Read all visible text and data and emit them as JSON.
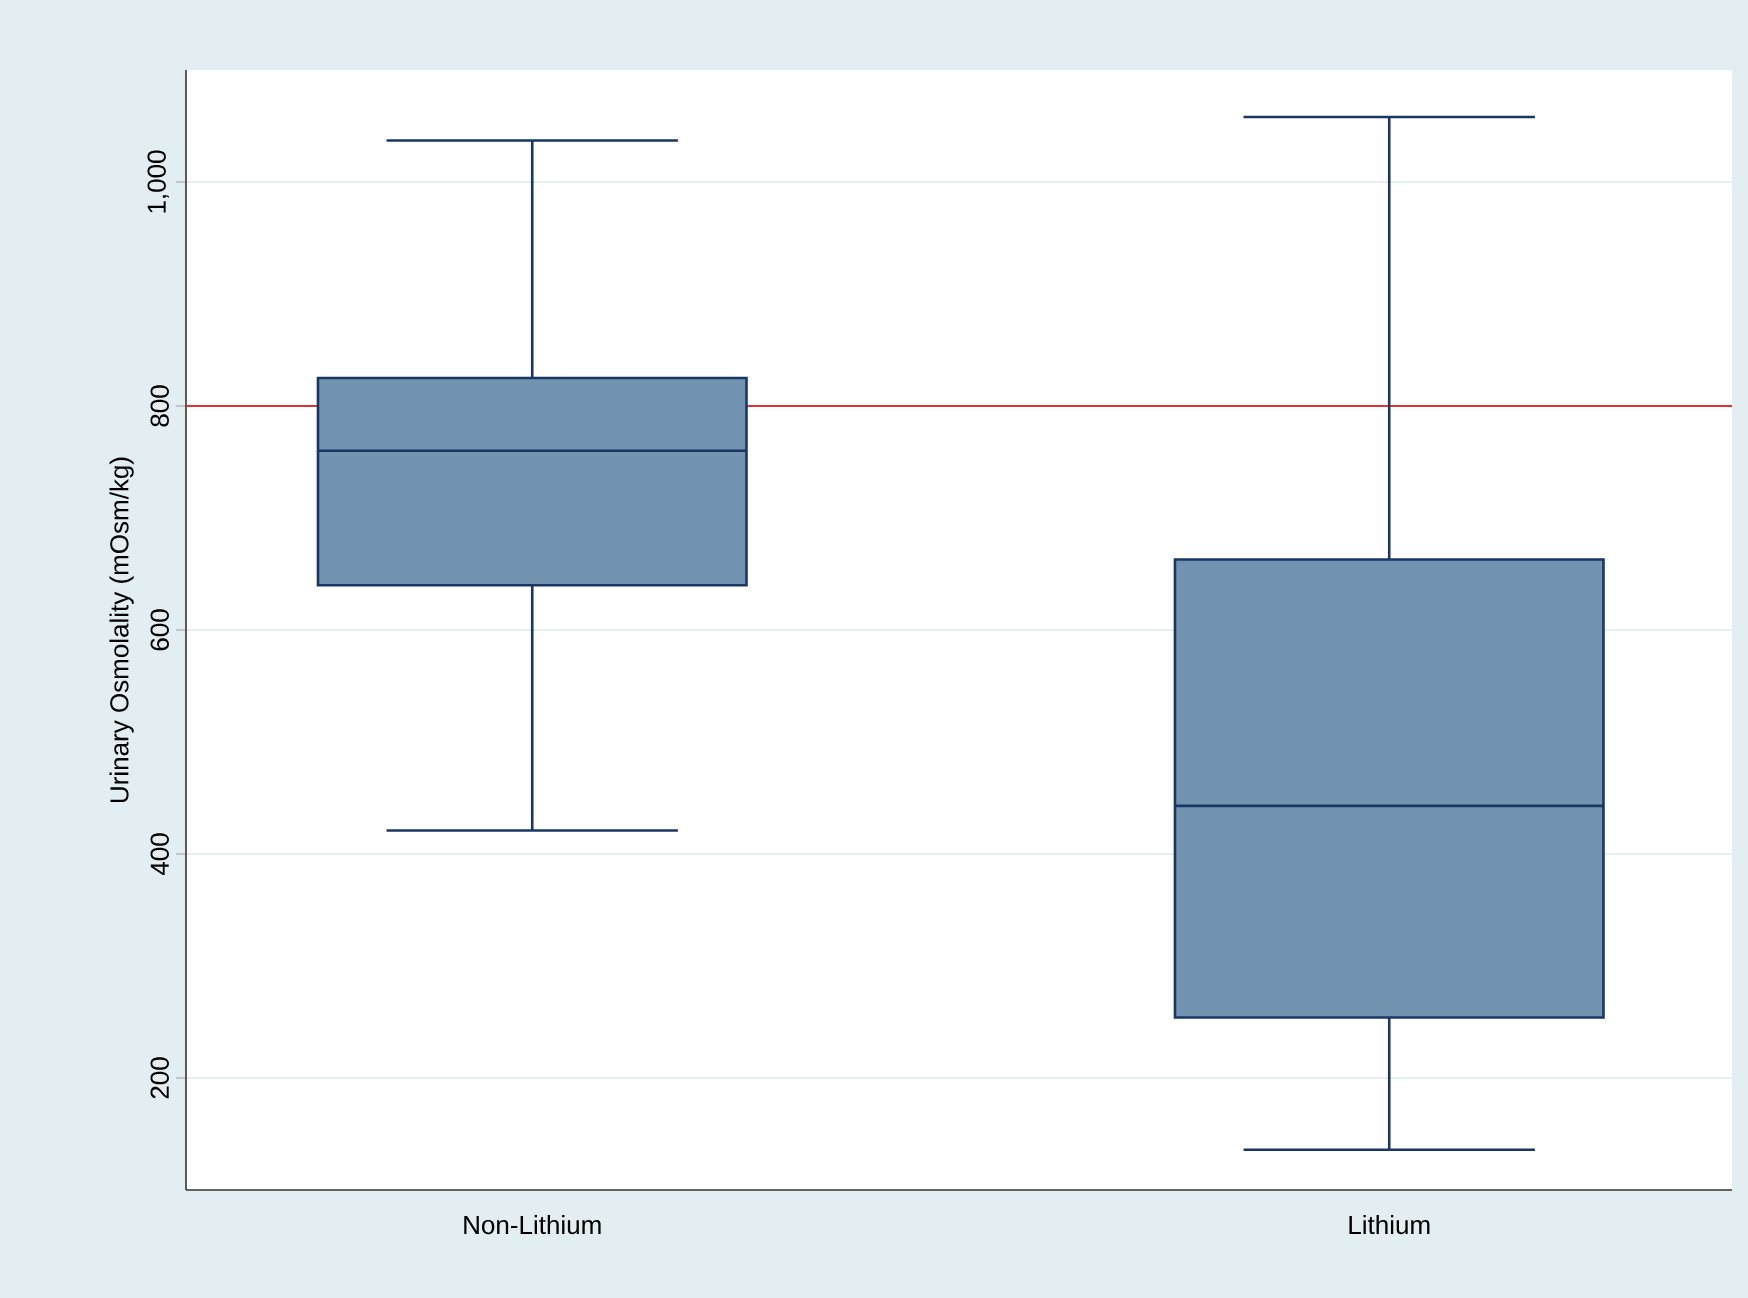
{
  "chart_data": {
    "type": "box",
    "ylabel": "Urinary Osmolality (mOsm/kg)",
    "categories": [
      "Non-Lithium",
      "Lithium"
    ],
    "boxes": [
      {
        "low": 421,
        "q1": 640,
        "median": 760,
        "q3": 825,
        "high": 1037
      },
      {
        "low": 136,
        "q1": 254,
        "median": 443,
        "q3": 663,
        "high": 1058
      }
    ],
    "color": "#7394b1",
    "ylim": [
      100,
      1100
    ],
    "yticks": [
      200,
      400,
      600,
      800,
      {
        "value": 1000,
        "label": "1,000"
      }
    ],
    "grid": "y",
    "ref_lines": [
      {
        "axis": "y",
        "value": 800,
        "color": "#e0332e"
      }
    ]
  }
}
